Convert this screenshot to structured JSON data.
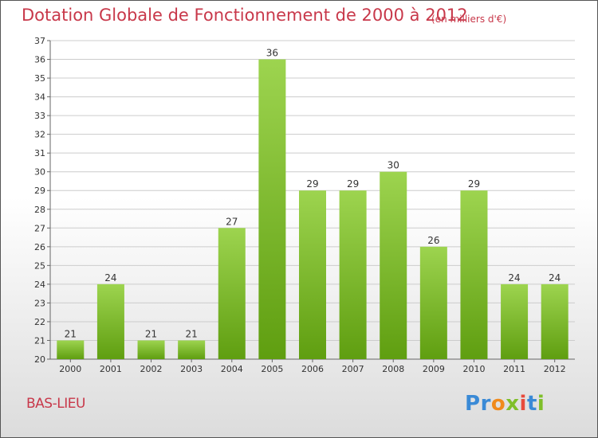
{
  "header": {
    "title": "Dotation Globale de Fonctionnement de 2000 à 2012",
    "unit": "(en milliers d'€)"
  },
  "footer": {
    "place": "BAS-LIEU",
    "logo": "Proxiti"
  },
  "colors": {
    "title": "#c8384a",
    "bar_light": "#9dd44f",
    "bar_dark": "#5f9e10",
    "grid": "#cccccc"
  },
  "chart_data": {
    "type": "bar",
    "title": "Dotation Globale de Fonctionnement de 2000 à 2012",
    "xlabel": "",
    "ylabel": "",
    "categories": [
      "2000",
      "2001",
      "2002",
      "2003",
      "2004",
      "2005",
      "2006",
      "2007",
      "2008",
      "2009",
      "2010",
      "2011",
      "2012"
    ],
    "values": [
      21,
      24,
      21,
      21,
      27,
      36,
      29,
      29,
      30,
      26,
      29,
      24,
      24
    ],
    "ylim": [
      20,
      37
    ],
    "yticks": [
      20,
      21,
      22,
      23,
      24,
      25,
      26,
      27,
      28,
      29,
      30,
      31,
      32,
      33,
      34,
      35,
      36,
      37
    ],
    "grid": "horizontal",
    "legend": "none"
  }
}
